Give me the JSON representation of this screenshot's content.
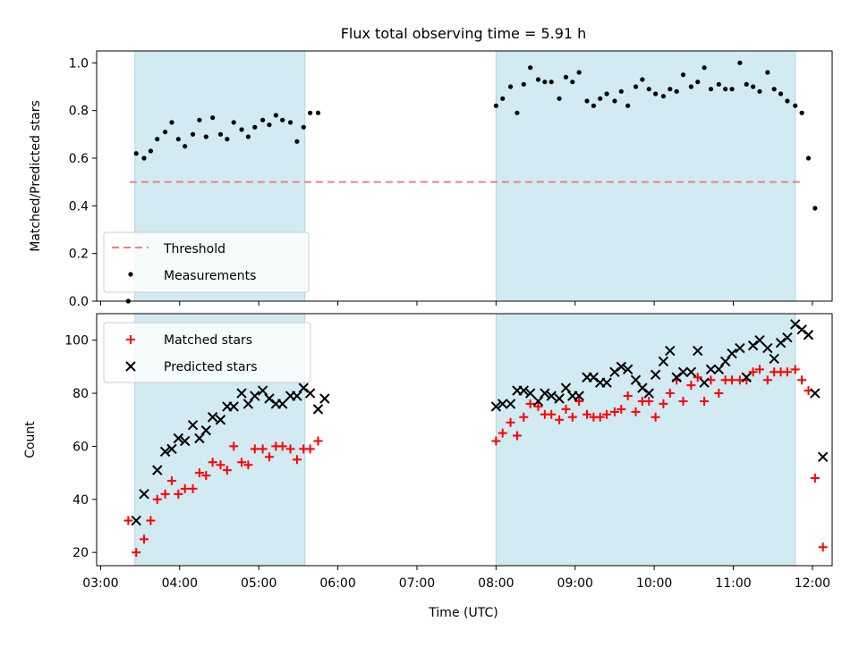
{
  "title": "Flux total observing time = 5.91 h",
  "x_tick_labels": [
    "03:00",
    "04:00",
    "05:00",
    "06:00",
    "07:00",
    "08:00",
    "09:00",
    "10:00",
    "11:00",
    "12:00"
  ],
  "x_label": "Time (UTC)",
  "colors": {
    "band": "#add8e6",
    "threshold": "#f08080",
    "matched": "#ff0000",
    "predicted": "#000000",
    "measurement": "#000000"
  },
  "chart_data": [
    {
      "type": "scatter",
      "ylabel": "Matched/Predicted stars",
      "ylim": [
        0,
        1.05
      ],
      "y_tick_labels": [
        "0.0",
        "0.2",
        "0.4",
        "0.6",
        "0.8",
        "1.0"
      ],
      "xlim": [
        "02:57",
        "12:15"
      ],
      "grid": false,
      "legend_placement": "lower-left",
      "legend": [
        "Threshold",
        "Measurements"
      ],
      "observing_windows": [
        {
          "start": "03:26",
          "end": "05:35"
        },
        {
          "start": "08:00",
          "end": "11:47"
        }
      ],
      "threshold": {
        "name": "Threshold",
        "value": 0.5,
        "x_range": [
          "03:22",
          "11:53"
        ],
        "style": "dashed"
      },
      "series": [
        {
          "name": "Measurements",
          "marker": "dot",
          "points": [
            [
              "03:21",
              0.0
            ],
            [
              "03:27",
              0.62
            ],
            [
              "03:33",
              0.6
            ],
            [
              "03:38",
              0.63
            ],
            [
              "03:43",
              0.68
            ],
            [
              "03:49",
              0.71
            ],
            [
              "03:54",
              0.75
            ],
            [
              "03:59",
              0.68
            ],
            [
              "04:04",
              0.65
            ],
            [
              "04:10",
              0.7
            ],
            [
              "04:15",
              0.76
            ],
            [
              "04:20",
              0.69
            ],
            [
              "04:25",
              0.77
            ],
            [
              "04:31",
              0.7
            ],
            [
              "04:36",
              0.68
            ],
            [
              "04:41",
              0.75
            ],
            [
              "04:47",
              0.72
            ],
            [
              "04:52",
              0.69
            ],
            [
              "04:57",
              0.73
            ],
            [
              "05:03",
              0.76
            ],
            [
              "05:08",
              0.74
            ],
            [
              "05:13",
              0.78
            ],
            [
              "05:18",
              0.76
            ],
            [
              "05:24",
              0.75
            ],
            [
              "05:29",
              0.67
            ],
            [
              "05:34",
              0.73
            ],
            [
              "05:39",
              0.79
            ],
            [
              "05:45",
              0.79
            ],
            [
              "08:00",
              0.82
            ],
            [
              "08:05",
              0.85
            ],
            [
              "08:11",
              0.9
            ],
            [
              "08:16",
              0.79
            ],
            [
              "08:21",
              0.91
            ],
            [
              "08:26",
              0.98
            ],
            [
              "08:32",
              0.93
            ],
            [
              "08:37",
              0.92
            ],
            [
              "08:42",
              0.92
            ],
            [
              "08:48",
              0.85
            ],
            [
              "08:53",
              0.94
            ],
            [
              "08:58",
              0.92
            ],
            [
              "09:03",
              0.96
            ],
            [
              "09:09",
              0.84
            ],
            [
              "09:14",
              0.82
            ],
            [
              "09:19",
              0.85
            ],
            [
              "09:24",
              0.87
            ],
            [
              "09:30",
              0.84
            ],
            [
              "09:35",
              0.88
            ],
            [
              "09:40",
              0.82
            ],
            [
              "09:46",
              0.9
            ],
            [
              "09:51",
              0.93
            ],
            [
              "09:56",
              0.89
            ],
            [
              "10:01",
              0.87
            ],
            [
              "10:07",
              0.86
            ],
            [
              "10:12",
              0.89
            ],
            [
              "10:17",
              0.88
            ],
            [
              "10:22",
              0.95
            ],
            [
              "10:28",
              0.9
            ],
            [
              "10:33",
              0.92
            ],
            [
              "10:38",
              0.98
            ],
            [
              "10:43",
              0.89
            ],
            [
              "10:49",
              0.91
            ],
            [
              "10:54",
              0.89
            ],
            [
              "10:59",
              0.89
            ],
            [
              "11:05",
              1.0
            ],
            [
              "11:10",
              0.91
            ],
            [
              "11:15",
              0.9
            ],
            [
              "11:20",
              0.88
            ],
            [
              "11:26",
              0.96
            ],
            [
              "11:31",
              0.89
            ],
            [
              "11:36",
              0.87
            ],
            [
              "11:41",
              0.84
            ],
            [
              "11:47",
              0.82
            ],
            [
              "11:52",
              0.79
            ],
            [
              "11:57",
              0.6
            ],
            [
              "12:02",
              0.39
            ]
          ]
        }
      ]
    },
    {
      "type": "scatter",
      "ylabel": "Count",
      "ylim": [
        15,
        110
      ],
      "y_tick_labels": [
        "20",
        "40",
        "60",
        "80",
        "100"
      ],
      "xlim": [
        "02:57",
        "12:15"
      ],
      "grid": false,
      "legend_placement": "upper-left",
      "legend": [
        "Matched stars",
        "Predicted stars"
      ],
      "observing_windows": [
        {
          "start": "03:26",
          "end": "05:35"
        },
        {
          "start": "08:00",
          "end": "11:47"
        }
      ],
      "series": [
        {
          "name": "Matched stars",
          "marker": "plus",
          "points": [
            [
              "03:21",
              32
            ],
            [
              "03:27",
              20
            ],
            [
              "03:33",
              25
            ],
            [
              "03:38",
              32
            ],
            [
              "03:43",
              40
            ],
            [
              "03:49",
              42
            ],
            [
              "03:54",
              47
            ],
            [
              "03:59",
              42
            ],
            [
              "04:04",
              44
            ],
            [
              "04:10",
              44
            ],
            [
              "04:15",
              50
            ],
            [
              "04:20",
              49
            ],
            [
              "04:25",
              54
            ],
            [
              "04:31",
              53
            ],
            [
              "04:36",
              51
            ],
            [
              "04:41",
              60
            ],
            [
              "04:47",
              54
            ],
            [
              "04:52",
              53
            ],
            [
              "04:57",
              59
            ],
            [
              "05:03",
              59
            ],
            [
              "05:08",
              56
            ],
            [
              "05:13",
              60
            ],
            [
              "05:18",
              60
            ],
            [
              "05:24",
              59
            ],
            [
              "05:29",
              55
            ],
            [
              "05:34",
              59
            ],
            [
              "05:39",
              59
            ],
            [
              "05:45",
              62
            ],
            [
              "08:00",
              62
            ],
            [
              "08:05",
              65
            ],
            [
              "08:11",
              69
            ],
            [
              "08:16",
              64
            ],
            [
              "08:21",
              71
            ],
            [
              "08:26",
              76
            ],
            [
              "08:32",
              75
            ],
            [
              "08:37",
              72
            ],
            [
              "08:42",
              72
            ],
            [
              "08:48",
              70
            ],
            [
              "08:53",
              74
            ],
            [
              "08:58",
              71
            ],
            [
              "09:03",
              77
            ],
            [
              "09:09",
              72
            ],
            [
              "09:14",
              71
            ],
            [
              "09:19",
              71
            ],
            [
              "09:24",
              72
            ],
            [
              "09:30",
              73
            ],
            [
              "09:35",
              74
            ],
            [
              "09:40",
              79
            ],
            [
              "09:46",
              73
            ],
            [
              "09:51",
              77
            ],
            [
              "09:56",
              77
            ],
            [
              "10:01",
              71
            ],
            [
              "10:07",
              76
            ],
            [
              "10:12",
              80
            ],
            [
              "10:17",
              85
            ],
            [
              "10:22",
              77
            ],
            [
              "10:28",
              83
            ],
            [
              "10:33",
              86
            ],
            [
              "10:38",
              77
            ],
            [
              "10:43",
              85
            ],
            [
              "10:49",
              80
            ],
            [
              "10:54",
              85
            ],
            [
              "10:59",
              85
            ],
            [
              "11:05",
              85
            ],
            [
              "11:10",
              85
            ],
            [
              "11:15",
              88
            ],
            [
              "11:20",
              89
            ],
            [
              "11:26",
              85
            ],
            [
              "11:31",
              88
            ],
            [
              "11:36",
              88
            ],
            [
              "11:41",
              88
            ],
            [
              "11:47",
              89
            ],
            [
              "11:52",
              85
            ],
            [
              "11:57",
              81
            ],
            [
              "12:02",
              48
            ],
            [
              "12:08",
              22
            ]
          ]
        },
        {
          "name": "Predicted stars",
          "marker": "x",
          "points": [
            [
              "03:27",
              32
            ],
            [
              "03:33",
              42
            ],
            [
              "03:43",
              51
            ],
            [
              "03:49",
              58
            ],
            [
              "03:54",
              59
            ],
            [
              "03:59",
              63
            ],
            [
              "04:04",
              62
            ],
            [
              "04:10",
              68
            ],
            [
              "04:15",
              63
            ],
            [
              "04:20",
              66
            ],
            [
              "04:25",
              71
            ],
            [
              "04:31",
              70
            ],
            [
              "04:36",
              75
            ],
            [
              "04:41",
              75
            ],
            [
              "04:47",
              80
            ],
            [
              "04:52",
              76
            ],
            [
              "04:57",
              79
            ],
            [
              "05:03",
              81
            ],
            [
              "05:08",
              78
            ],
            [
              "05:13",
              76
            ],
            [
              "05:18",
              76
            ],
            [
              "05:24",
              79
            ],
            [
              "05:29",
              79
            ],
            [
              "05:34",
              82
            ],
            [
              "05:39",
              80
            ],
            [
              "05:45",
              74
            ],
            [
              "05:50",
              78
            ],
            [
              "08:00",
              75
            ],
            [
              "08:05",
              76
            ],
            [
              "08:11",
              76
            ],
            [
              "08:16",
              81
            ],
            [
              "08:21",
              81
            ],
            [
              "08:26",
              80
            ],
            [
              "08:32",
              77
            ],
            [
              "08:37",
              80
            ],
            [
              "08:42",
              79
            ],
            [
              "08:48",
              78
            ],
            [
              "08:53",
              82
            ],
            [
              "08:58",
              79
            ],
            [
              "09:03",
              79
            ],
            [
              "09:09",
              86
            ],
            [
              "09:14",
              86
            ],
            [
              "09:19",
              84
            ],
            [
              "09:24",
              84
            ],
            [
              "09:30",
              88
            ],
            [
              "09:35",
              90
            ],
            [
              "09:40",
              89
            ],
            [
              "09:46",
              85
            ],
            [
              "09:51",
              82
            ],
            [
              "09:56",
              80
            ],
            [
              "10:01",
              87
            ],
            [
              "10:07",
              92
            ],
            [
              "10:12",
              96
            ],
            [
              "10:17",
              86
            ],
            [
              "10:22",
              88
            ],
            [
              "10:28",
              88
            ],
            [
              "10:33",
              96
            ],
            [
              "10:38",
              84
            ],
            [
              "10:43",
              89
            ],
            [
              "10:49",
              89
            ],
            [
              "10:54",
              92
            ],
            [
              "10:59",
              95
            ],
            [
              "11:05",
              97
            ],
            [
              "11:10",
              86
            ],
            [
              "11:15",
              98
            ],
            [
              "11:20",
              100
            ],
            [
              "11:26",
              97
            ],
            [
              "11:31",
              93
            ],
            [
              "11:36",
              99
            ],
            [
              "11:41",
              101
            ],
            [
              "11:47",
              106
            ],
            [
              "11:52",
              104
            ],
            [
              "11:57",
              102
            ],
            [
              "12:02",
              80
            ],
            [
              "12:08",
              56
            ]
          ]
        }
      ]
    }
  ]
}
